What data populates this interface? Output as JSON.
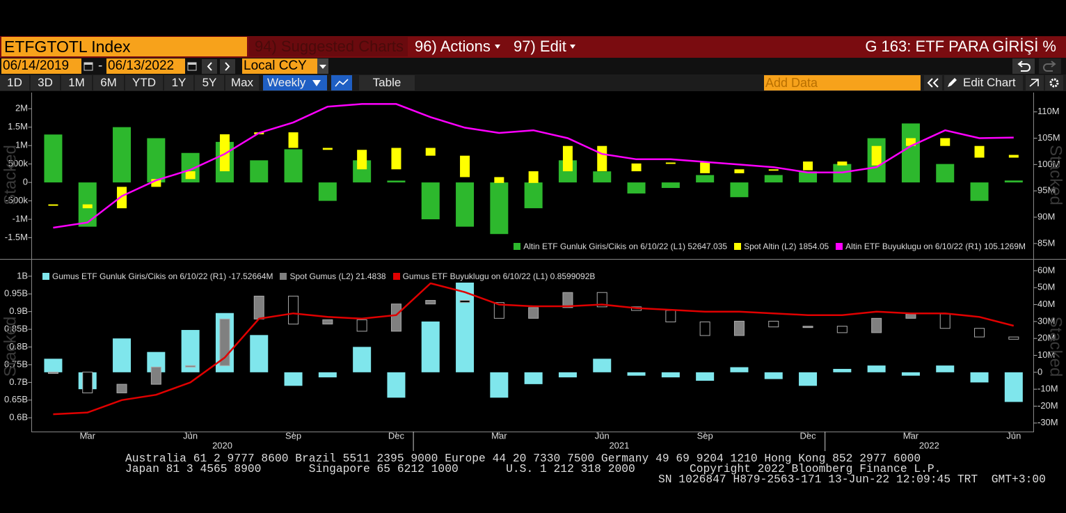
{
  "toolbar": {
    "security": "ETFGTOTL Index",
    "menus": [
      "94) Suggested Charts",
      "96) Actions",
      "97) Edit"
    ],
    "title": "G 163: ETF PARA GİRİŞİ %",
    "start_date": "06/14/2019",
    "separator": "-",
    "end_date": "06/13/2022",
    "currency": "Local CCY",
    "periods": [
      "1D",
      "3D",
      "1M",
      "6M",
      "YTD",
      "1Y",
      "5Y",
      "Max"
    ],
    "frequency": "Weekly",
    "view": "Table",
    "add_data": "Add Data",
    "edit": "Edit Chart"
  },
  "chart_data": [
    {
      "type": "combo",
      "watermark": "Stacked",
      "legend": "lower right",
      "x": [
        "2020-02",
        "2020-03",
        "2020-04",
        "2020-05",
        "2020-06",
        "2020-07",
        "2020-08",
        "2020-09",
        "2020-10",
        "2020-11",
        "2020-12",
        "2021-01",
        "2021-02",
        "2021-03",
        "2021-04",
        "2021-05",
        "2021-06",
        "2021-07",
        "2021-08",
        "2021-09",
        "2021-10",
        "2021-11",
        "2021-12",
        "2022-01",
        "2022-02",
        "2022-03",
        "2022-04",
        "2022-05",
        "2022-06"
      ],
      "xlim": [
        "2020-01",
        "2022-07"
      ],
      "ylim": [
        -2000000,
        2400000
      ],
      "yticks": [
        {
          "value": 2000000,
          "label": "2M"
        },
        {
          "value": 1500000,
          "label": "1.5M"
        },
        {
          "value": 1000000,
          "label": "1M"
        },
        {
          "value": 500000,
          "label": "500k"
        },
        0,
        {
          "value": -500000,
          "label": "-500k"
        },
        {
          "value": -1000000,
          "label": "-1M"
        },
        {
          "value": -1500000,
          "label": "-1.5M"
        }
      ],
      "y2lim": [
        82600000,
        113400000
      ],
      "y2ticks": [
        {
          "value": 110000000,
          "label": "110M"
        },
        {
          "value": 105000000,
          "label": "105M"
        },
        {
          "value": 100000000,
          "label": "100M"
        },
        {
          "value": 95000000,
          "label": "95M"
        },
        {
          "value": 90000000,
          "label": "90M"
        },
        {
          "value": 85000000,
          "label": "85M"
        }
      ],
      "y3lim": [
        1334,
        2167
      ],
      "series": [
        {
          "name": "Altin ETF Gunluk Giris/Cikis on 6/10/22 (L1) 52647.035",
          "color": "#2db82d",
          "kind": "bar",
          "axis": "y",
          "values": [
            1300000,
            -1200000,
            1500000,
            1200000,
            800000,
            1100000,
            600000,
            900000,
            -500000,
            600000,
            50000,
            -1000000,
            -1200000,
            -1400000,
            -700000,
            600000,
            300000,
            -300000,
            -150000,
            200000,
            -400000,
            200000,
            300000,
            500000,
            1200000,
            1600000,
            500000,
            -500000,
            52647.035
          ]
        },
        {
          "name": "Spot Altin (L2) 1854.05",
          "color": "#ffff00",
          "kind": "candle",
          "axis": "y3",
          "values": [
            1600,
            1580,
            1690,
            1730,
            1770,
            1960,
            1970,
            1890,
            1880,
            1780,
            1890,
            1850,
            1740,
            1710,
            1770,
            1900,
            1770,
            1810,
            1815,
            1760,
            1780,
            1775,
            1820,
            1800,
            1900,
            1940,
            1900,
            1840,
            1854.05
          ]
        },
        {
          "name": "Altin ETF Buyuklugu on 6/10/22 (R1) 105.1269M",
          "color": "#ff00ff",
          "kind": "line",
          "axis": "y2",
          "values": [
            88000000,
            89000000,
            94000000,
            97000000,
            99000000,
            102000000,
            106000000,
            108000000,
            111000000,
            111500000,
            111500000,
            109000000,
            107000000,
            106000000,
            106500000,
            105000000,
            102000000,
            101000000,
            101000000,
            100500000,
            100000000,
            99500000,
            98500000,
            98500000,
            99500000,
            103500000,
            106500000,
            105000000,
            105126900
          ]
        }
      ]
    },
    {
      "type": "combo",
      "watermark": "Stacked",
      "legend": "upper left",
      "x": [
        "2020-02",
        "2020-03",
        "2020-04",
        "2020-05",
        "2020-06",
        "2020-07",
        "2020-08",
        "2020-09",
        "2020-10",
        "2020-11",
        "2020-12",
        "2021-01",
        "2021-02",
        "2021-03",
        "2021-04",
        "2021-05",
        "2021-06",
        "2021-07",
        "2021-08",
        "2021-09",
        "2021-10",
        "2021-11",
        "2021-12",
        "2022-01",
        "2022-02",
        "2022-03",
        "2022-04",
        "2022-05",
        "2022-06"
      ],
      "xlim": [
        "2020-01",
        "2022-07"
      ],
      "xticks": [
        {
          "value": "2020-03",
          "label": "Mar"
        },
        {
          "value": "2020-06",
          "label": "Jun"
        },
        {
          "value": "2020-09",
          "label": "Sep"
        },
        {
          "value": "2020-12",
          "label": "Dec"
        },
        {
          "value": "2021-03",
          "label": "Mar"
        },
        {
          "value": "2021-06",
          "label": "Jun"
        },
        {
          "value": "2021-09",
          "label": "Sep"
        },
        {
          "value": "2021-12",
          "label": "Dec"
        },
        {
          "value": "2022-03",
          "label": "Mar"
        },
        {
          "value": "2022-06",
          "label": "Jun"
        }
      ],
      "year_ticks": [
        2020,
        2021,
        2022
      ],
      "ylim": [
        565000000,
        1037000000
      ],
      "yticks": [
        {
          "value": 1000000000,
          "label": "1B"
        },
        {
          "value": 950000000,
          "label": "0.95B"
        },
        {
          "value": 900000000,
          "label": "0.9B"
        },
        {
          "value": 850000000,
          "label": "0.85B"
        },
        {
          "value": 800000000,
          "label": "0.8B"
        },
        {
          "value": 750000000,
          "label": "0.75B"
        },
        {
          "value": 700000000,
          "label": "0.7B"
        },
        {
          "value": 650000000,
          "label": "0.65B"
        },
        {
          "value": 600000000,
          "label": "0.6B"
        }
      ],
      "y2lim": [
        -34200000,
        64500000
      ],
      "y2ticks": [
        {
          "value": 60000000,
          "label": "60M"
        },
        {
          "value": 50000000,
          "label": "50M"
        },
        {
          "value": 40000000,
          "label": "40M"
        },
        {
          "value": 30000000,
          "label": "30M"
        },
        {
          "value": 20000000,
          "label": "20M"
        },
        {
          "value": 10000000,
          "label": "10M"
        },
        0,
        {
          "value": -10000000,
          "label": "-10M"
        },
        {
          "value": -20000000,
          "label": "-20M"
        },
        {
          "value": -30000000,
          "label": "-30M"
        }
      ],
      "y3lim": [
        8.8,
        32.1
      ],
      "series": [
        {
          "name": "Gumus ETF Gunluk Giris/Cikis on 6/10/22 (R1) -17.52664M",
          "color": "#7fe6ec",
          "kind": "bar",
          "axis": "y2",
          "values": [
            8000000,
            -10000000,
            20000000,
            12000000,
            25000000,
            35000000,
            22000000,
            -8000000,
            -3000000,
            15000000,
            -15000000,
            30000000,
            55000000,
            -15000000,
            -7000000,
            -3000000,
            8000000,
            -2000000,
            -3000000,
            -5000000,
            3000000,
            -4000000,
            -8000000,
            2000000,
            4000000,
            -2000000,
            4000000,
            -6000000,
            -17526640
          ]
        },
        {
          "name": "Spot Gumus (L2) 21.4838",
          "color": "#808080",
          "kind": "candle",
          "axis": "y3",
          "values": [
            16.9,
            14,
            15.2,
            17.6,
            17.8,
            24.3,
            27.5,
            23.6,
            24.2,
            22.6,
            26.4,
            26.9,
            26.6,
            24.4,
            25.9,
            28,
            26,
            25.5,
            23.9,
            22,
            24,
            23.2,
            23.3,
            22.4,
            24.4,
            25,
            23,
            21.8,
            21.4838
          ]
        },
        {
          "name": "Gumus ETF Buyuklugu on 6/10/22 (L1) 0.8599092B",
          "color": "#e00000",
          "kind": "line",
          "axis": "y",
          "values": [
            610000000,
            615000000,
            650000000,
            665000000,
            700000000,
            770000000,
            880000000,
            895000000,
            885000000,
            880000000,
            890000000,
            980000000,
            955000000,
            920000000,
            915000000,
            915000000,
            920000000,
            910000000,
            905000000,
            900000000,
            900000000,
            895000000,
            890000000,
            890000000,
            900000000,
            895000000,
            895000000,
            885000000,
            859909200
          ]
        }
      ]
    }
  ],
  "footer": [
    "Australia 61 2 9777 8600 Brazil 5511 2395 9000 Europe 44 20 7330 7500 Germany 49 69 9204 1210 Hong Kong 852 2977 6000",
    "Japan 81 3 4565 8900       Singapore 65 6212 1000       U.S. 1 212 318 2000        Copyright 2022 Bloomberg Finance L.P.",
    "SN 1026847 H879-2563-171 13-Jun-22 12:09:45 TRT  GMT+3:00"
  ]
}
